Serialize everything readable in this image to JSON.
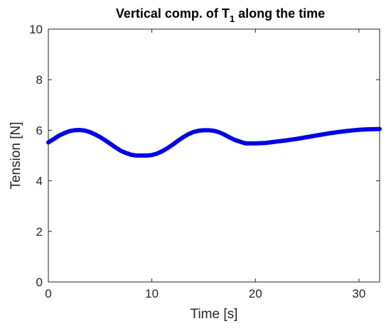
{
  "chart_data": {
    "type": "line",
    "title": {
      "prefix": "Vertical comp. of T",
      "subscript": "1",
      "suffix": " along the time"
    },
    "xlabel": "Time [s]",
    "ylabel": "Tension [N]",
    "xlim": [
      0,
      32
    ],
    "ylim": [
      0,
      10
    ],
    "xticks": [
      0,
      10,
      20,
      30
    ],
    "yticks": [
      0,
      2,
      4,
      6,
      8,
      10
    ],
    "xtick_labels": [
      "0",
      "10",
      "20",
      "30"
    ],
    "ytick_labels": [
      "0",
      "2",
      "4",
      "6",
      "8",
      "10"
    ],
    "grid": false,
    "legend": "none",
    "series": [
      {
        "color": "#0000e6",
        "x": [
          0,
          0.5,
          1,
          1.5,
          2,
          2.5,
          3,
          3.5,
          4,
          4.5,
          5,
          5.5,
          6,
          6.5,
          7,
          7.5,
          8,
          8.5,
          9,
          9.5,
          10,
          10.5,
          11,
          11.5,
          12,
          12.5,
          13,
          13.5,
          14,
          14.5,
          15,
          15.5,
          16,
          16.5,
          17,
          17.5,
          18,
          18.5,
          18.9,
          19.1,
          20,
          21,
          22,
          23,
          24,
          25,
          26,
          27,
          28,
          29,
          30,
          31,
          32
        ],
        "y": [
          5.52,
          5.65,
          5.78,
          5.88,
          5.96,
          6.0,
          6.01,
          5.99,
          5.93,
          5.84,
          5.73,
          5.6,
          5.46,
          5.32,
          5.19,
          5.1,
          5.03,
          5.0,
          5.0,
          5.0,
          5.02,
          5.08,
          5.17,
          5.29,
          5.43,
          5.58,
          5.72,
          5.84,
          5.93,
          5.98,
          6.0,
          6.0,
          5.98,
          5.92,
          5.83,
          5.72,
          5.62,
          5.55,
          5.5,
          5.48,
          5.48,
          5.5,
          5.55,
          5.6,
          5.66,
          5.73,
          5.8,
          5.87,
          5.93,
          5.98,
          6.02,
          6.04,
          6.05
        ]
      }
    ]
  }
}
